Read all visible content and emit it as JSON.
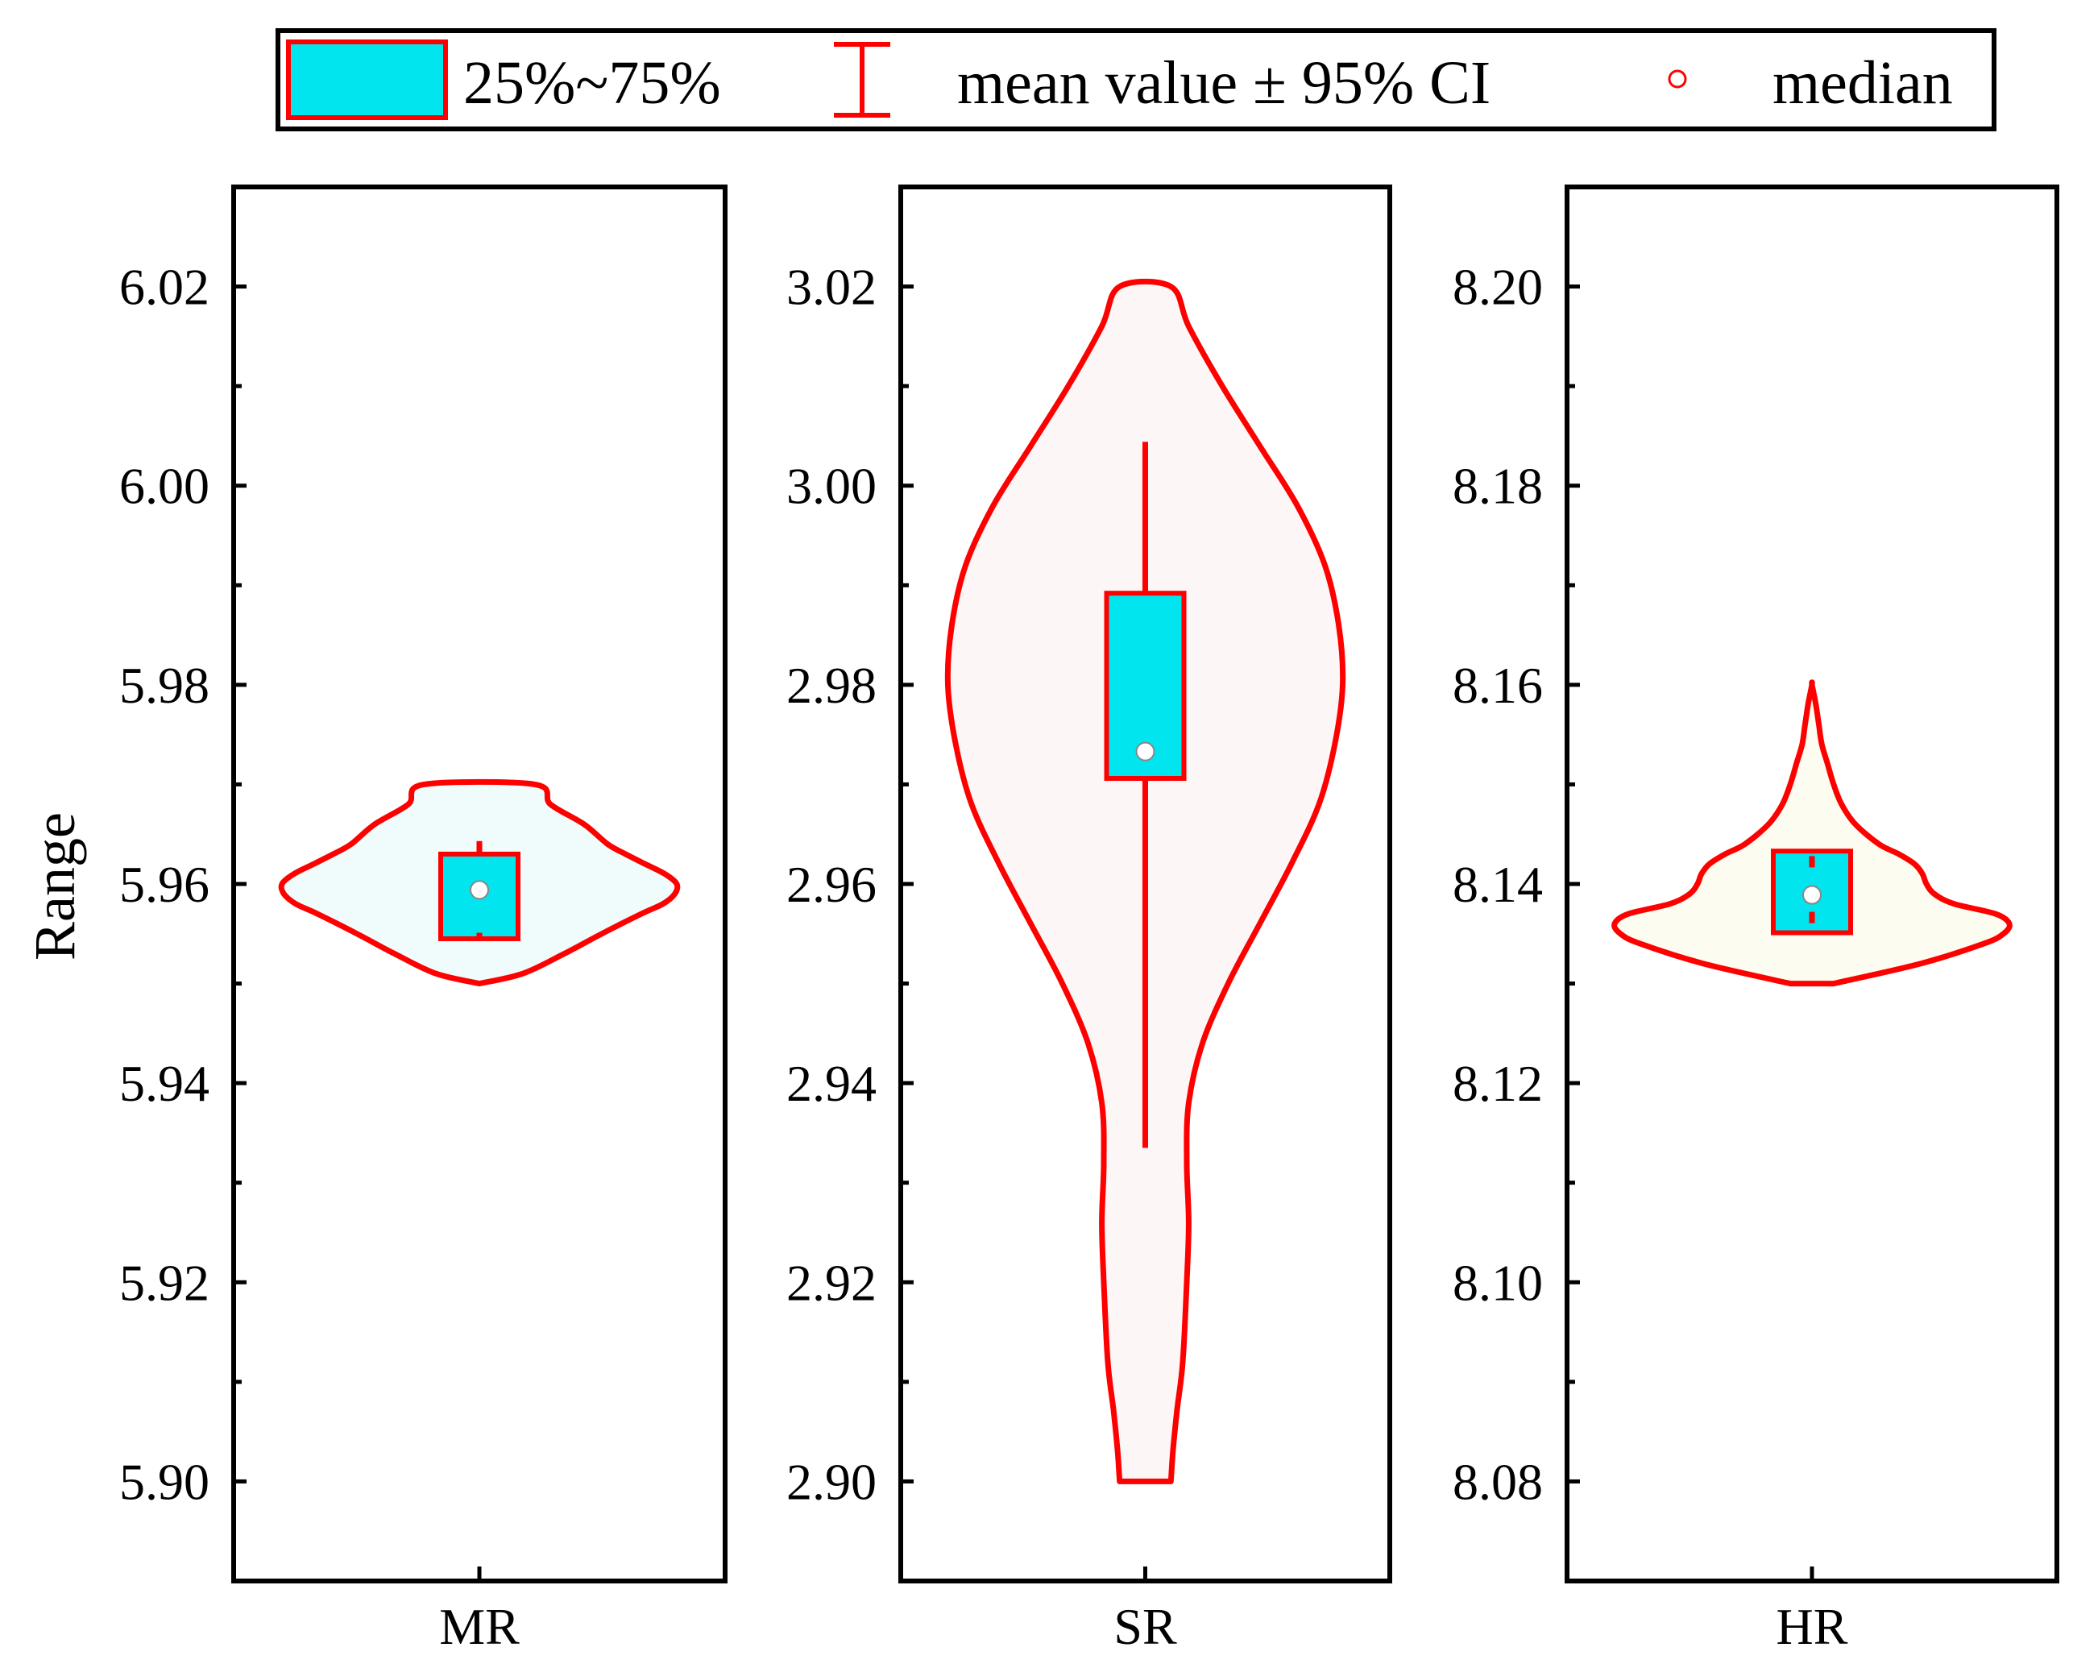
{
  "chart_data": {
    "type": "violin",
    "ylabel": "Range",
    "legend": {
      "placement": "top-center",
      "entries": [
        {
          "name": "box",
          "label": "25%~75%"
        },
        {
          "name": "ci",
          "label": "mean value ± 95% CI"
        },
        {
          "name": "median",
          "label": "median"
        }
      ]
    },
    "colors": {
      "outline": "#ff0000",
      "box_fill": "#00e5ee",
      "violin_fills": [
        "#f0fbfc",
        "#fdf6f6",
        "#fdfcf0"
      ],
      "median_fill": "#ffffff",
      "axis": "#000000"
    },
    "panels": [
      {
        "category": "MR",
        "ylim": [
          5.89,
          6.03
        ],
        "yticks": [
          5.9,
          5.92,
          5.94,
          5.96,
          5.98,
          6.0,
          6.02
        ],
        "ytick_labels": [
          "5.90",
          "5.92",
          "5.94",
          "5.96",
          "5.98",
          "6.00",
          "6.02"
        ],
        "q1": 5.9545,
        "q3": 5.963,
        "median": 5.9594,
        "ci_low": 5.9551,
        "ci_high": 5.9643,
        "violin": [
          [
            5.95,
            0
          ],
          [
            5.951,
            0.22
          ],
          [
            5.953,
            0.43
          ],
          [
            5.955,
            0.62
          ],
          [
            5.957,
            0.82
          ],
          [
            5.958,
            0.93
          ],
          [
            5.959,
            0.99
          ],
          [
            5.96,
            1.0
          ],
          [
            5.961,
            0.94
          ],
          [
            5.962,
            0.84
          ],
          [
            5.963,
            0.74
          ],
          [
            5.964,
            0.65
          ],
          [
            5.966,
            0.53
          ],
          [
            5.968,
            0.36
          ],
          [
            5.97,
            0.28
          ]
        ]
      },
      {
        "category": "SR",
        "ylim": [
          2.89,
          3.03
        ],
        "yticks": [
          2.9,
          2.92,
          2.94,
          2.96,
          2.98,
          3.0,
          3.02
        ],
        "ytick_labels": [
          "2.90",
          "2.92",
          "2.94",
          "2.96",
          "2.98",
          "3.00",
          "3.02"
        ],
        "q1": 2.9706,
        "q3": 2.9892,
        "median": 2.9733,
        "ci_low": 2.9335,
        "ci_high": 3.0044,
        "violin": [
          [
            2.9,
            0.13
          ],
          [
            2.903,
            0.14
          ],
          [
            2.907,
            0.16
          ],
          [
            2.912,
            0.19
          ],
          [
            2.92,
            0.21
          ],
          [
            2.926,
            0.22
          ],
          [
            2.932,
            0.21
          ],
          [
            2.938,
            0.22
          ],
          [
            2.944,
            0.29
          ],
          [
            2.95,
            0.42
          ],
          [
            2.956,
            0.58
          ],
          [
            2.962,
            0.74
          ],
          [
            2.968,
            0.88
          ],
          [
            2.974,
            0.96
          ],
          [
            2.98,
            1.0
          ],
          [
            2.986,
            0.98
          ],
          [
            2.992,
            0.91
          ],
          [
            2.998,
            0.77
          ],
          [
            3.004,
            0.58
          ],
          [
            3.01,
            0.39
          ],
          [
            3.016,
            0.22
          ],
          [
            3.02,
            0.13
          ]
        ]
      },
      {
        "category": "HR",
        "ylim": [
          8.07,
          8.21
        ],
        "yticks": [
          8.08,
          8.1,
          8.12,
          8.14,
          8.16,
          8.18,
          8.2
        ],
        "ytick_labels": [
          "8.08",
          "8.10",
          "8.12",
          "8.14",
          "8.16",
          "8.18",
          "8.20"
        ],
        "q1": 8.1351,
        "q3": 8.1433,
        "median": 8.1389,
        "ci_low": 8.1372,
        "ci_high": 8.1428,
        "violin": [
          [
            8.13,
            0.11
          ],
          [
            8.132,
            0.55
          ],
          [
            8.134,
            0.87
          ],
          [
            8.135,
            0.97
          ],
          [
            8.136,
            1.0
          ],
          [
            8.137,
            0.93
          ],
          [
            8.138,
            0.72
          ],
          [
            8.139,
            0.62
          ],
          [
            8.14,
            0.58
          ],
          [
            8.141,
            0.56
          ],
          [
            8.142,
            0.52
          ],
          [
            8.143,
            0.44
          ],
          [
            8.144,
            0.34
          ],
          [
            8.146,
            0.22
          ],
          [
            8.148,
            0.15
          ],
          [
            8.15,
            0.11
          ],
          [
            8.152,
            0.08
          ],
          [
            8.154,
            0.05
          ],
          [
            8.156,
            0.035
          ],
          [
            8.158,
            0.02
          ],
          [
            8.16,
            0.0
          ]
        ]
      }
    ]
  }
}
